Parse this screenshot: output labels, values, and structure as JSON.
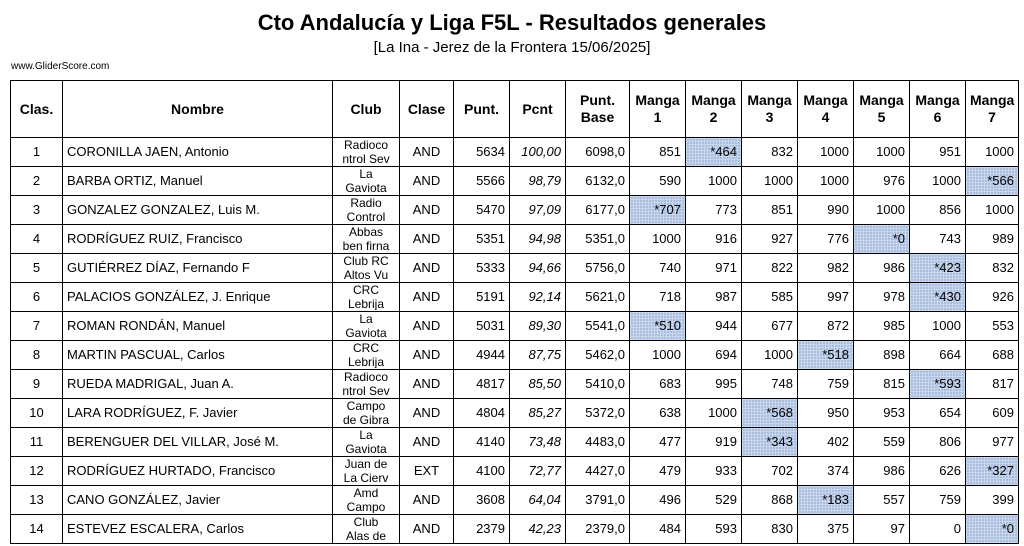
{
  "title": "Cto Andalucía y Liga F5L - Resultados generales",
  "subtitle": "[La Ina - Jerez de la Frontera 15/06/2025]",
  "site": "www.GliderScore.com",
  "headers": {
    "clas": "Clas.",
    "nombre": "Nombre",
    "club": "Club",
    "clase": "Clase",
    "punt": "Punt.",
    "pcnt": "Pcnt",
    "punt_base_1": "Punt.",
    "punt_base_2": "Base",
    "mangas": [
      {
        "l1": "Manga",
        "l2": "1"
      },
      {
        "l1": "Manga",
        "l2": "2"
      },
      {
        "l1": "Manga",
        "l2": "3"
      },
      {
        "l1": "Manga",
        "l2": "4"
      },
      {
        "l1": "Manga",
        "l2": "5"
      },
      {
        "l1": "Manga",
        "l2": "6"
      },
      {
        "l1": "Manga",
        "l2": "7"
      }
    ]
  },
  "rows": [
    {
      "clas": "1",
      "nombre": "CORONILLA JAEN, Antonio",
      "club_l1": "Radioco",
      "club_l2": "ntrol Sev",
      "clase": "AND",
      "punt": "5634",
      "pcnt": "100,00",
      "base": "6098,0",
      "m": [
        "851",
        "*464",
        "832",
        "1000",
        "1000",
        "951",
        "1000"
      ],
      "disc": 1
    },
    {
      "clas": "2",
      "nombre": "BARBA ORTIZ, Manuel",
      "club_l1": "La",
      "club_l2": "Gaviota",
      "clase": "AND",
      "punt": "5566",
      "pcnt": "98,79",
      "base": "6132,0",
      "m": [
        "590",
        "1000",
        "1000",
        "1000",
        "976",
        "1000",
        "*566"
      ],
      "disc": 6
    },
    {
      "clas": "3",
      "nombre": "GONZALEZ GONZALEZ, Luis M.",
      "club_l1": "Radio",
      "club_l2": "Control",
      "clase": "AND",
      "punt": "5470",
      "pcnt": "97,09",
      "base": "6177,0",
      "m": [
        "*707",
        "773",
        "851",
        "990",
        "1000",
        "856",
        "1000"
      ],
      "disc": 0
    },
    {
      "clas": "4",
      "nombre": "RODRÍGUEZ RUIZ, Francisco",
      "club_l1": "Abbas",
      "club_l2": "ben firna",
      "clase": "AND",
      "punt": "5351",
      "pcnt": "94,98",
      "base": "5351,0",
      "m": [
        "1000",
        "916",
        "927",
        "776",
        "*0",
        "743",
        "989"
      ],
      "disc": 4
    },
    {
      "clas": "5",
      "nombre": "GUTIÉRREZ DÍAZ, Fernando F",
      "club_l1": "Club RC",
      "club_l2": "Altos Vu",
      "clase": "AND",
      "punt": "5333",
      "pcnt": "94,66",
      "base": "5756,0",
      "m": [
        "740",
        "971",
        "822",
        "982",
        "986",
        "*423",
        "832"
      ],
      "disc": 5
    },
    {
      "clas": "6",
      "nombre": "PALACIOS GONZÁLEZ, J. Enrique",
      "club_l1": "CRC",
      "club_l2": "Lebrija",
      "clase": "AND",
      "punt": "5191",
      "pcnt": "92,14",
      "base": "5621,0",
      "m": [
        "718",
        "987",
        "585",
        "997",
        "978",
        "*430",
        "926"
      ],
      "disc": 5
    },
    {
      "clas": "7",
      "nombre": "ROMAN RONDÁN, Manuel",
      "club_l1": "La",
      "club_l2": "Gaviota",
      "clase": "AND",
      "punt": "5031",
      "pcnt": "89,30",
      "base": "5541,0",
      "m": [
        "*510",
        "944",
        "677",
        "872",
        "985",
        "1000",
        "553"
      ],
      "disc": 0
    },
    {
      "clas": "8",
      "nombre": "MARTIN PASCUAL, Carlos",
      "club_l1": "CRC",
      "club_l2": "Lebrija",
      "clase": "AND",
      "punt": "4944",
      "pcnt": "87,75",
      "base": "5462,0",
      "m": [
        "1000",
        "694",
        "1000",
        "*518",
        "898",
        "664",
        "688"
      ],
      "disc": 3
    },
    {
      "clas": "9",
      "nombre": "RUEDA MADRIGAL, Juan A.",
      "club_l1": "Radioco",
      "club_l2": "ntrol Sev",
      "clase": "AND",
      "punt": "4817",
      "pcnt": "85,50",
      "base": "5410,0",
      "m": [
        "683",
        "995",
        "748",
        "759",
        "815",
        "*593",
        "817"
      ],
      "disc": 5
    },
    {
      "clas": "10",
      "nombre": "LARA RODRÍGUEZ, F. Javier",
      "club_l1": "Campo",
      "club_l2": "de Gibra",
      "clase": "AND",
      "punt": "4804",
      "pcnt": "85,27",
      "base": "5372,0",
      "m": [
        "638",
        "1000",
        "*568",
        "950",
        "953",
        "654",
        "609"
      ],
      "disc": 2
    },
    {
      "clas": "11",
      "nombre": "BERENGUER DEL VILLAR, José M.",
      "club_l1": "La",
      "club_l2": "Gaviota",
      "clase": "AND",
      "punt": "4140",
      "pcnt": "73,48",
      "base": "4483,0",
      "m": [
        "477",
        "919",
        "*343",
        "402",
        "559",
        "806",
        "977"
      ],
      "disc": 2
    },
    {
      "clas": "12",
      "nombre": "RODRÍGUEZ HURTADO, Francisco",
      "club_l1": "Juan de",
      "club_l2": "La Cierv",
      "clase": "EXT",
      "punt": "4100",
      "pcnt": "72,77",
      "base": "4427,0",
      "m": [
        "479",
        "933",
        "702",
        "374",
        "986",
        "626",
        "*327"
      ],
      "disc": 6
    },
    {
      "clas": "13",
      "nombre": "CANO GONZÁLEZ, Javier",
      "club_l1": "Amd",
      "club_l2": "Campo",
      "clase": "AND",
      "punt": "3608",
      "pcnt": "64,04",
      "base": "3791,0",
      "m": [
        "496",
        "529",
        "868",
        "*183",
        "557",
        "759",
        "399"
      ],
      "disc": 3
    },
    {
      "clas": "14",
      "nombre": "ESTEVEZ ESCALERA, Carlos",
      "club_l1": "Club",
      "club_l2": "Alas de",
      "clase": "AND",
      "punt": "2379",
      "pcnt": "42,23",
      "base": "2379,0",
      "m": [
        "484",
        "593",
        "830",
        "375",
        "97",
        "0",
        "*0"
      ],
      "disc": 6
    }
  ]
}
